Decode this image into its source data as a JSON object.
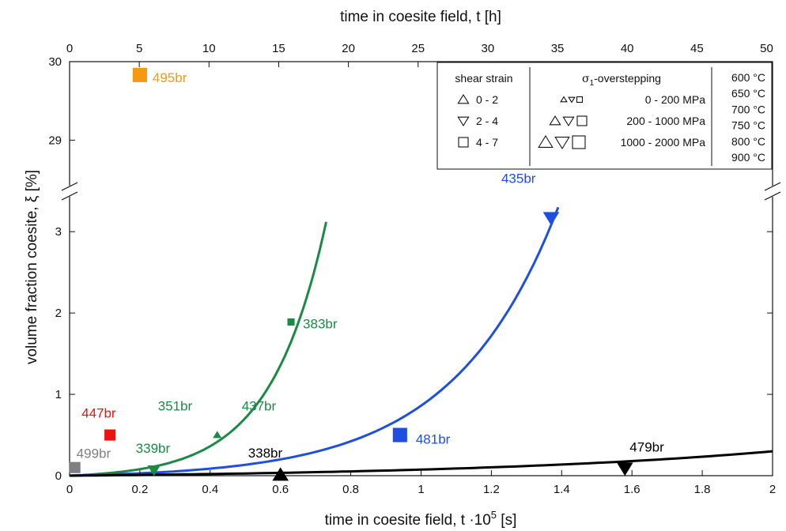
{
  "chart_data": {
    "type": "scatter",
    "xlabel": "time in coesite field, t ·10",
    "xlabel_sup": "5",
    "xlabel_unit": " [s]",
    "top_xlabel": "time in coesite field, t [h]",
    "ylabel": "volume fraction coesite, ξ [%]",
    "xlim": [
      0,
      2
    ],
    "ylim_lower": [
      0,
      3.4
    ],
    "ylim_upper": [
      28.45,
      30
    ],
    "axis_break": true,
    "x_ticks": [
      0,
      0.2,
      0.4,
      0.6,
      0.8,
      1,
      1.2,
      1.4,
      1.6,
      1.8,
      2
    ],
    "x_tick_labels": [
      "0",
      "0.2",
      "0.4",
      "0.6",
      "0.8",
      "1",
      "1.2",
      "1.4",
      "1.6",
      "1.8",
      "2"
    ],
    "top_ticks_h": [
      0,
      5,
      10,
      15,
      20,
      25,
      30,
      35,
      40,
      45,
      50
    ],
    "top_tick_labels": [
      "0",
      "5",
      "10",
      "15",
      "20",
      "25",
      "30",
      "35",
      "40",
      "45",
      "50"
    ],
    "y_ticks_lower": [
      0,
      1,
      2,
      3
    ],
    "y_tick_labels_lower": [
      "0",
      "1",
      "2",
      "3"
    ],
    "y_ticks_upper": [
      29,
      30
    ],
    "y_tick_labels_upper": [
      "29",
      "30"
    ],
    "curves": [
      {
        "color": "#1a8a45",
        "t_end": 0.73,
        "y_end": 3.12,
        "k": 4.6
      },
      {
        "color": "#1e4fe0",
        "t_end": 1.39,
        "y_end": 3.3,
        "k": 4.7
      },
      {
        "color": "#000000",
        "t_end": 2.0,
        "y_end": 0.3,
        "k": 2.2
      }
    ],
    "points": [
      {
        "label": "495br",
        "x": 0.2,
        "y": 29.83,
        "shape": "square",
        "size": "large",
        "color": "#f59a0f"
      },
      {
        "label": "447br",
        "x": 0.115,
        "y": 0.5,
        "shape": "square",
        "size": "medium",
        "color": "#ee1111"
      },
      {
        "label": "499br",
        "x": 0.015,
        "y": 0.1,
        "shape": "square",
        "size": "medium",
        "color": "#808080"
      },
      {
        "label": "339br",
        "x": 0.24,
        "y": 0.07,
        "shape": "triangle-down",
        "size": "medium",
        "color": "#1a8a45"
      },
      {
        "label": "351br",
        "x": 0.42,
        "y": 0.5,
        "shape": "triangle-up",
        "size": "small",
        "color": "#1a8a45"
      },
      {
        "label": "437br",
        "x": 0.42,
        "y": 0.5,
        "shape": "triangle-up",
        "size": "small",
        "color": "#1a8a45"
      },
      {
        "label": "383br",
        "x": 0.63,
        "y": 1.89,
        "shape": "square",
        "size": "small",
        "color": "#1a8a45"
      },
      {
        "label": "338br",
        "x": 0.6,
        "y": 0.01,
        "shape": "triangle-up",
        "size": "large",
        "color": "#000000"
      },
      {
        "label": "481br",
        "x": 0.94,
        "y": 0.5,
        "shape": "square",
        "size": "large",
        "color": "#1e4fe0"
      },
      {
        "label": "435br",
        "x": 1.37,
        "y": 3.17,
        "shape": "triangle-down",
        "size": "large",
        "color": "#1e4fe0"
      },
      {
        "label": "479br",
        "x": 1.58,
        "y": 0.09,
        "shape": "triangle-down",
        "size": "large",
        "color": "#000000"
      }
    ],
    "legend": {
      "placement": "top-right",
      "strain_title": "shear strain",
      "strain_rows": [
        {
          "shape": "triangle-up",
          "text": "0 - 2"
        },
        {
          "shape": "triangle-down",
          "text": "2 - 4"
        },
        {
          "shape": "square",
          "text": "4 - 7"
        }
      ],
      "overstep_title_symbol": "σ",
      "overstep_title_sub": "1",
      "overstep_title_rest": "-overstepping",
      "overstep_rows": [
        {
          "size": "small",
          "text": "0 - 200 MPa"
        },
        {
          "size": "medium",
          "text": "200 - 1000 MPa"
        },
        {
          "size": "large",
          "text": "1000 - 2000 MPa"
        }
      ],
      "temperatures": [
        {
          "text": "600 °C",
          "color": "#000000"
        },
        {
          "text": "650 °C",
          "color": "#1e4fe0"
        },
        {
          "text": "700 °C",
          "color": "#1a8a45"
        },
        {
          "text": "750 °C",
          "color": "#f59a0f"
        },
        {
          "text": "800 °C",
          "color": "#ee1111"
        },
        {
          "text": "900 °C",
          "color": "#808080"
        }
      ]
    }
  }
}
